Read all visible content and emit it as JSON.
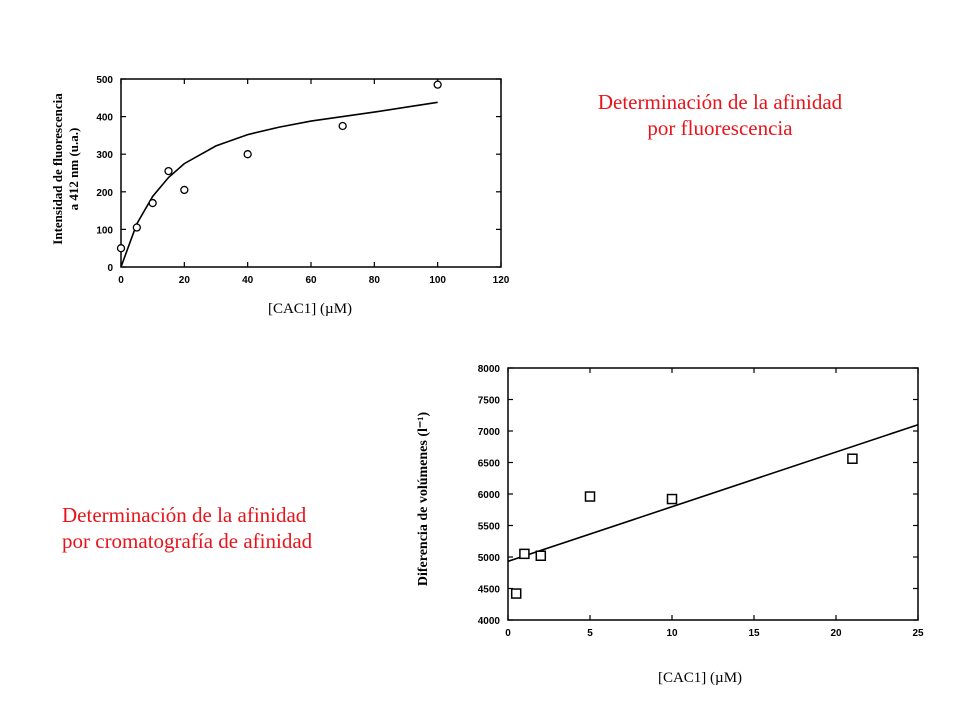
{
  "captions": {
    "fluorescence": [
      "Determinación de la afinidad",
      "por fluorescencia"
    ],
    "chromatography": [
      "Determinación de la afinidad",
      "por cromatografía de afinidad"
    ]
  },
  "chart_data": [
    {
      "type": "scatter",
      "xlabel": "[CAC1] (µM)",
      "ylabel": [
        "Intensidad de fluorescencia",
        "a 412 nm (u.a.)"
      ],
      "xlim": [
        0,
        120
      ],
      "ylim": [
        0,
        500
      ],
      "xticks": [
        0,
        20,
        40,
        60,
        80,
        100,
        120
      ],
      "yticks": [
        0,
        100,
        200,
        300,
        400,
        500
      ],
      "grid": false,
      "marker": "circle",
      "series": [
        {
          "points": [
            [
              0,
              50
            ],
            [
              5,
              105
            ],
            [
              10,
              170
            ],
            [
              15,
              255
            ],
            [
              20,
              205
            ],
            [
              40,
              300
            ],
            [
              70,
              375
            ],
            [
              100,
              485
            ]
          ]
        }
      ],
      "fit_curve": {
        "type": "saturation",
        "points": [
          [
            0,
            0
          ],
          [
            5,
            115
          ],
          [
            10,
            188
          ],
          [
            15,
            238
          ],
          [
            20,
            275
          ],
          [
            30,
            322
          ],
          [
            40,
            352
          ],
          [
            50,
            372
          ],
          [
            60,
            388
          ],
          [
            70,
            400
          ],
          [
            80,
            412
          ],
          [
            90,
            425
          ],
          [
            100,
            438
          ]
        ]
      }
    },
    {
      "type": "scatter",
      "xlabel": "[CAC1] (µM)",
      "ylabel": "Diferencia de volúmenes (l⁻¹)",
      "xlim": [
        0,
        25
      ],
      "ylim": [
        4000,
        8000
      ],
      "xticks": [
        0,
        5,
        10,
        15,
        20,
        25
      ],
      "yticks": [
        4000,
        4500,
        5000,
        5500,
        6000,
        6500,
        7000,
        7500,
        8000
      ],
      "grid": false,
      "marker": "square",
      "series": [
        {
          "points": [
            [
              0.5,
              4420
            ],
            [
              1,
              5050
            ],
            [
              2,
              5020
            ],
            [
              5,
              5960
            ],
            [
              10,
              5920
            ],
            [
              21,
              6560
            ]
          ]
        }
      ],
      "fit_line": {
        "type": "linear",
        "points": [
          [
            0,
            4930
          ],
          [
            25,
            7100
          ]
        ]
      }
    }
  ]
}
